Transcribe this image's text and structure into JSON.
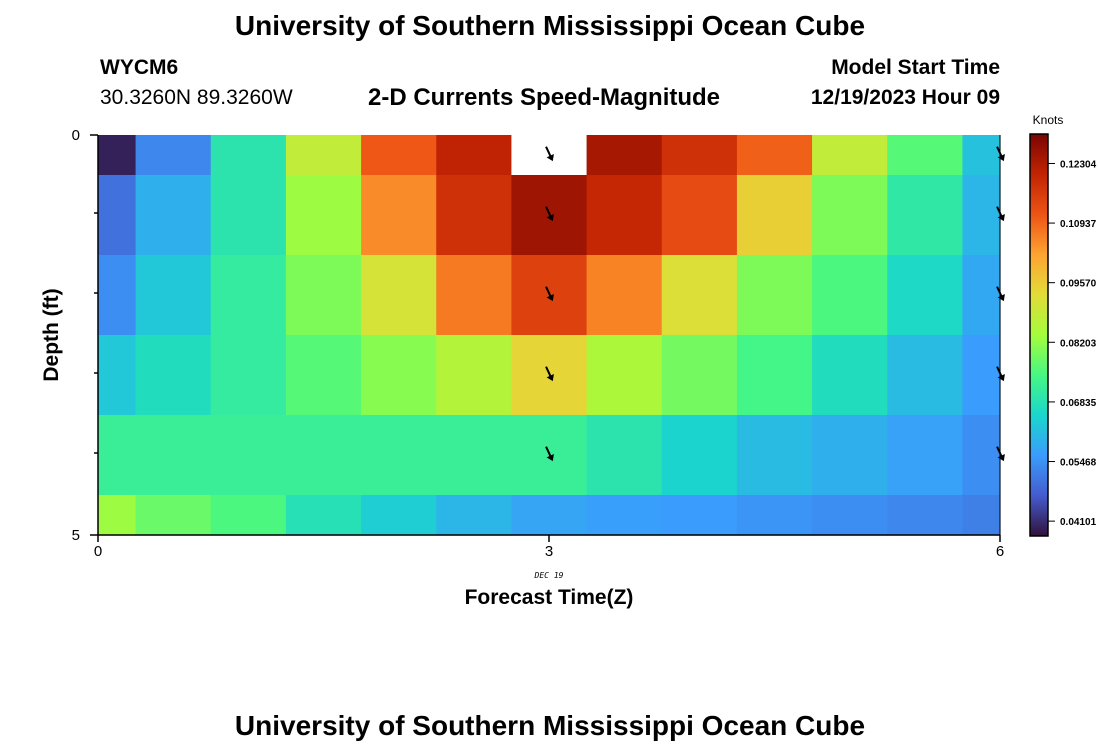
{
  "header": {
    "title": "University of Southern Mississippi Ocean Cube",
    "station_id": "WYCM6",
    "coordinates": "30.3260N  89.3260W",
    "model_start_label": "Model Start Time",
    "model_start_value": "12/19/2023 Hour 09",
    "subtitle": "2-D Currents Speed-Magnitude"
  },
  "footer": {
    "title": "University of Southern Mississippi Ocean Cube"
  },
  "colors": {
    "background": "#ffffff",
    "axis": "#000000",
    "arrow": "#000000"
  },
  "chart_data": {
    "type": "heatmap",
    "title": "2-D Currents Speed-Magnitude",
    "xlabel": "Forecast Time(Z)",
    "ylabel": "Depth (ft)",
    "date_label": "DEC 19",
    "x_ticks": [
      "0",
      "3",
      "6"
    ],
    "y_ticks": [
      "0",
      "5"
    ],
    "xlim": [
      0,
      6
    ],
    "ylim": [
      0,
      5
    ],
    "colorbar": {
      "unit_label": "Knots",
      "ticks": [
        "0.12304",
        "0.10937",
        "0.09570",
        "0.08203",
        "0.06835",
        "0.05468",
        "0.04101"
      ],
      "range": [
        0.0376,
        0.1298
      ]
    },
    "columns_center_x": [
      0,
      0.5,
      1,
      1.5,
      2,
      2.5,
      3,
      3.5,
      4,
      4.5,
      5,
      5.5,
      6
    ],
    "rows_depth_range": [
      [
        0,
        0.5
      ],
      [
        0.5,
        1.5
      ],
      [
        1.5,
        2.5
      ],
      [
        2.5,
        3.5
      ],
      [
        3.5,
        4.5
      ],
      [
        4.5,
        5
      ]
    ],
    "speed_knots": [
      [
        0.0395,
        0.053,
        0.069,
        0.088,
        0.111,
        0.121,
        null,
        0.124,
        0.118,
        0.11,
        0.088,
        0.076,
        0.062
      ],
      [
        0.05,
        0.059,
        0.069,
        0.083,
        0.105,
        0.118,
        0.125,
        0.12,
        0.113,
        0.095,
        0.08,
        0.07,
        0.06
      ],
      [
        0.054,
        0.063,
        0.071,
        0.08,
        0.091,
        0.107,
        0.115,
        0.106,
        0.092,
        0.08,
        0.075,
        0.066,
        0.058
      ],
      [
        0.063,
        0.067,
        0.071,
        0.076,
        0.081,
        0.086,
        0.094,
        0.085,
        0.079,
        0.074,
        0.067,
        0.061,
        0.056
      ],
      [
        0.072,
        0.072,
        0.072,
        0.072,
        0.072,
        0.072,
        0.072,
        0.069,
        0.065,
        0.061,
        0.059,
        0.057,
        0.054
      ],
      [
        0.083,
        0.078,
        0.075,
        0.068,
        0.064,
        0.06,
        0.0575,
        0.0565,
        0.056,
        0.055,
        0.054,
        0.053,
        0.052
      ]
    ],
    "arrows": {
      "times": [
        3,
        6
      ],
      "rows": [
        0,
        1,
        2,
        3,
        4
      ],
      "direction": "toward south-southeast"
    }
  }
}
